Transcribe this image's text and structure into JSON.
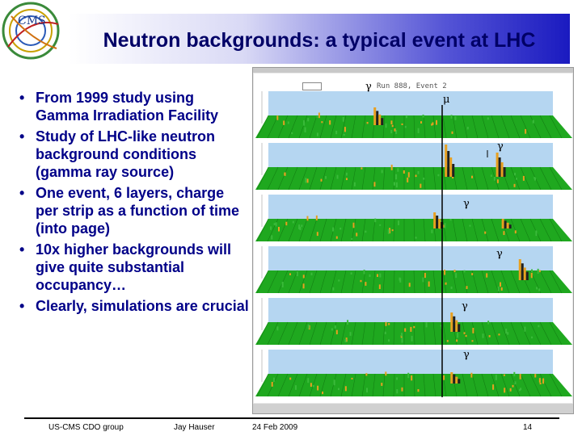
{
  "slide": {
    "title": "Neutron backgrounds: a typical event at LHC",
    "bullets": [
      "From 1999 study using Gamma Irradiation Facility",
      "Study of LHC-like neutron background conditions (gamma ray source)",
      "One event, 6 layers, charge per strip as a function of time (into page)",
      "10x higher backgrounds will give quite substantial occupancy…",
      "Clearly, simulations are crucial"
    ],
    "bullet_symbol": "•"
  },
  "figure": {
    "run_label": "Run 888, Event 2",
    "markers": [
      "γ",
      "μ",
      "γ",
      "γ",
      "γ",
      "γ",
      "γ"
    ],
    "colors": {
      "floor": "#1fa81f",
      "wall": "#2a8ad8",
      "peak": "#e8a020",
      "dark": "#202020"
    }
  },
  "logo": {
    "text": "CMS",
    "icon": "cms-detector-logo-icon"
  },
  "footer": {
    "group": "US-CMS CDO group",
    "author": "Jay Hauser",
    "date": "24 Feb 2009",
    "page": "14"
  }
}
